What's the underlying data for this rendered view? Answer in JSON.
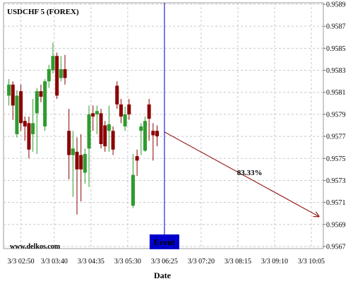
{
  "chart_data": {
    "type": "candlestick",
    "title": "USDCHF 5 (FOREX)",
    "x_label": "Date",
    "watermark": "www.delkos.com",
    "up_color": "#2e9b2e",
    "down_color": "#8b0000",
    "grid": true,
    "x": [
      "3/3 02:32",
      "3/3 02:38",
      "3/3 02:44",
      "3/3 02:50",
      "3/3 02:56",
      "3/3 03:02",
      "3/3 03:08",
      "3/3 03:14",
      "3/3 03:20",
      "3/3 03:26",
      "3/3 03:32",
      "3/3 03:38",
      "3/3 03:44",
      "3/3 03:50",
      "3/3 03:56",
      "3/3 04:02",
      "3/3 04:08",
      "3/3 04:14",
      "3/3 04:20",
      "3/3 04:26",
      "3/3 04:32",
      "3/3 04:38",
      "3/3 04:44",
      "3/3 04:50",
      "3/3 04:56",
      "3/3 05:02",
      "3/3 05:08",
      "3/3 05:14",
      "3/3 05:20",
      "3/3 05:26",
      "3/3 05:32",
      "3/3 05:38",
      "3/3 05:44",
      "3/3 05:50",
      "3/3 05:56",
      "3/3 06:02",
      "3/3 06:08",
      "3/3 06:14"
    ],
    "open": [
      0.95807,
      0.95817,
      0.95772,
      0.95811,
      0.95784,
      0.95782,
      0.95772,
      0.95791,
      0.95811,
      0.95779,
      0.9582,
      0.9583,
      0.95843,
      0.95823,
      0.95831,
      0.95775,
      0.95753,
      0.95756,
      0.95753,
      0.95737,
      0.95759,
      0.95791,
      0.9579,
      0.95791,
      0.9578,
      0.95775,
      0.95775,
      0.95816,
      0.95799,
      0.95779,
      0.95799,
      0.95707,
      0.95752,
      0.95775,
      0.95757,
      0.95799,
      0.95775,
      0.95775
    ],
    "high": [
      0.95822,
      0.9582,
      0.95812,
      0.95817,
      0.95788,
      0.95788,
      0.95804,
      0.95814,
      0.95817,
      0.95822,
      0.95835,
      0.95855,
      0.95846,
      0.95843,
      0.95844,
      0.95795,
      0.95775,
      0.95769,
      0.95772,
      0.95759,
      0.95798,
      0.95798,
      0.95798,
      0.95795,
      0.95784,
      0.95798,
      0.95779,
      0.9582,
      0.95804,
      0.95797,
      0.95804,
      0.95754,
      0.95758,
      0.95782,
      0.95788,
      0.95804,
      0.95782,
      0.9578
    ],
    "low": [
      0.95798,
      0.95785,
      0.95769,
      0.95775,
      0.95766,
      0.9575,
      0.95756,
      0.95754,
      0.95801,
      0.95775,
      0.95814,
      0.95827,
      0.95804,
      0.9582,
      0.95817,
      0.95731,
      0.95715,
      0.95699,
      0.95711,
      0.95727,
      0.95724,
      0.95775,
      0.95772,
      0.95759,
      0.95756,
      0.95756,
      0.95753,
      0.95795,
      0.95782,
      0.95775,
      0.95785,
      0.95705,
      0.95734,
      0.95753,
      0.95756,
      0.95766,
      0.95748,
      0.95761
    ],
    "close": [
      0.95817,
      0.95798,
      0.95807,
      0.95782,
      0.95779,
      0.95758,
      0.95782,
      0.95811,
      0.95806,
      0.9582,
      0.95831,
      0.95843,
      0.95807,
      0.95831,
      0.95823,
      0.95753,
      0.95759,
      0.9574,
      0.9574,
      0.95754,
      0.9579,
      0.95788,
      0.95793,
      0.95763,
      0.95761,
      0.95781,
      0.95758,
      0.95799,
      0.95788,
      0.9579,
      0.9579,
      0.95735,
      0.95748,
      0.95779,
      0.95784,
      0.95786,
      0.95771,
      0.9577
    ],
    "xlim": [
      "3/3 02:24",
      "3/3 10:23"
    ],
    "xticks": [
      "3/3 02:50",
      "3/3 03:40",
      "3/3 04:35",
      "3/3 05:30",
      "3/3 06:25",
      "3/3 07:20",
      "3/3 08:15",
      "3/3 09:10",
      "3/3 10:05"
    ],
    "ylim": [
      0.9567,
      0.9589
    ],
    "yticks": [
      0.9567,
      0.9569,
      0.9571,
      0.9573,
      0.9575,
      0.9577,
      0.9579,
      0.9581,
      0.9583,
      0.9585,
      0.9587,
      0.9589
    ],
    "event": {
      "x": "3/3 06:25",
      "label": "Event",
      "color": "#0000cc"
    },
    "projection": {
      "x": [
        "3/3 06:25",
        "3/3 10:17"
      ],
      "y": [
        0.95774,
        0.95697
      ],
      "label": "83.33%",
      "color": "#8b0000"
    }
  }
}
